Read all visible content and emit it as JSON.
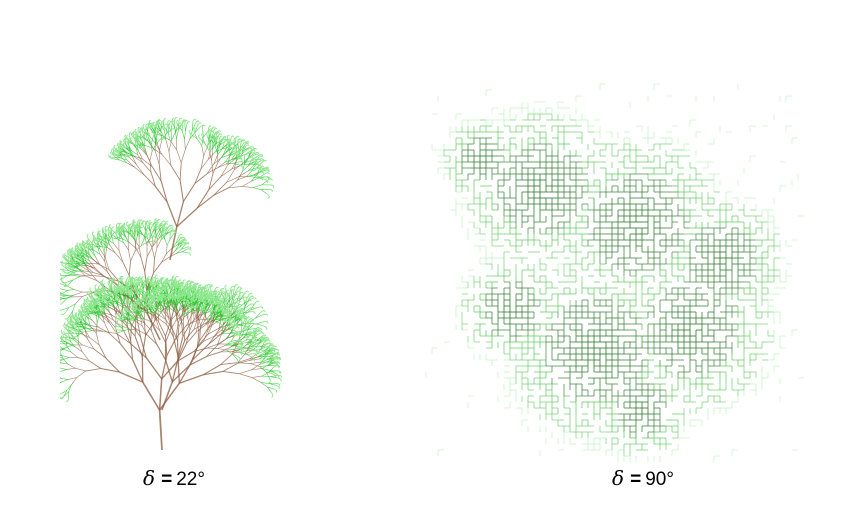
{
  "figures": [
    {
      "caption_symbol": "δ",
      "caption_equals": "=",
      "caption_value": "22°"
    },
    {
      "caption_symbol": "δ",
      "caption_equals": "=",
      "caption_value": "90°"
    }
  ],
  "colors": {
    "branch": "#8b5a3c",
    "leaf": "#2ec82e",
    "leaf_light": "#8ee88e",
    "grid_dark": "#2d7a2d",
    "grid_mid": "#3fbf3f",
    "grid_light": "#9fe89f"
  }
}
